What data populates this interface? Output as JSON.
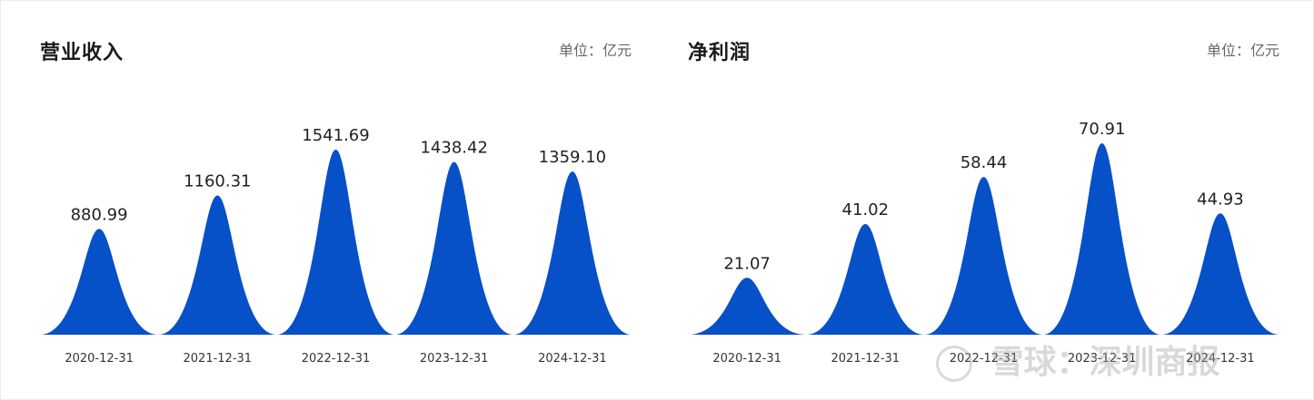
{
  "chart_data": [
    {
      "type": "area",
      "title": "营业收入",
      "unit": "单位：亿元",
      "categories": [
        "2020-12-31",
        "2021-12-31",
        "2022-12-31",
        "2023-12-31",
        "2024-12-31"
      ],
      "values": [
        880.99,
        1160.31,
        1541.69,
        1438.42,
        1359.1
      ],
      "value_labels": [
        "880.99",
        "1160.31",
        "1541.69",
        "1438.42",
        "1359.10"
      ],
      "color": "#0650c8",
      "grid": false
    },
    {
      "type": "area",
      "title": "净利润",
      "unit": "单位：亿元",
      "categories": [
        "2020-12-31",
        "2021-12-31",
        "2022-12-31",
        "2023-12-31",
        "2024-12-31"
      ],
      "values": [
        21.07,
        41.02,
        58.44,
        70.91,
        44.93
      ],
      "value_labels": [
        "21.07",
        "41.02",
        "58.44",
        "70.91",
        "44.93"
      ],
      "color": "#0650c8",
      "grid": false
    }
  ],
  "watermark": {
    "text": "雪球：深圳商报",
    "icon": "snowball-logo-icon"
  }
}
